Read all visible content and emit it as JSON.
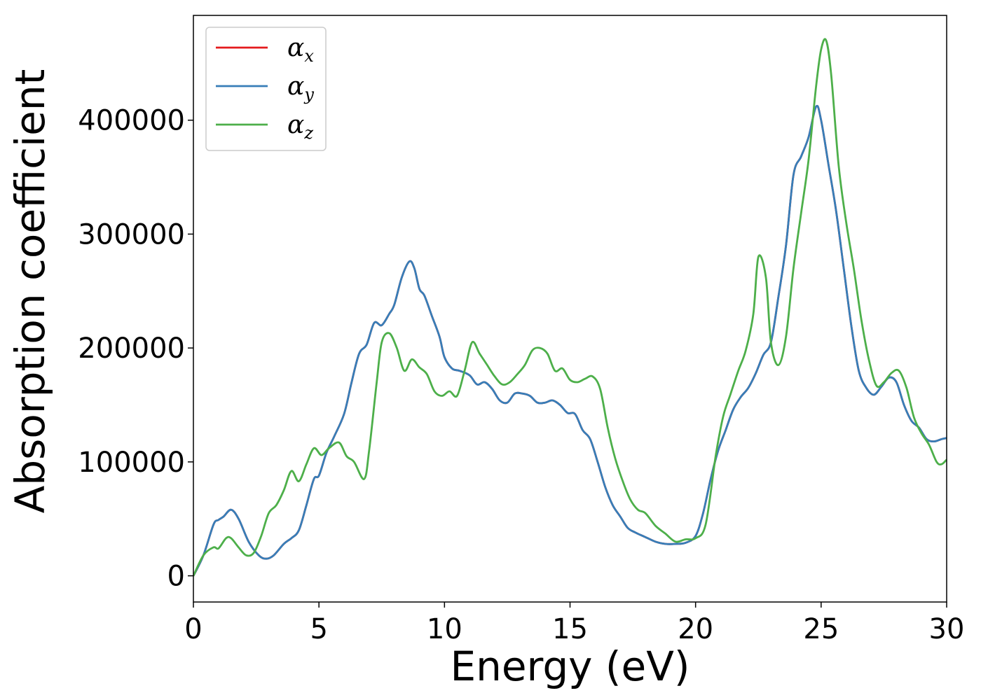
{
  "chart_data": {
    "type": "line",
    "xlabel": "Energy (eV)",
    "ylabel": "Absorption coefficient",
    "xlim": [
      0,
      30
    ],
    "ylim": [
      -23000,
      492000
    ],
    "xticks": [
      0,
      5,
      10,
      15,
      20,
      25,
      30
    ],
    "yticks": [
      0,
      100000,
      200000,
      300000,
      400000
    ],
    "xtick_labels": [
      "0",
      "5",
      "10",
      "15",
      "20",
      "25",
      "30"
    ],
    "ytick_labels": [
      "0",
      "100000",
      "200000",
      "300000",
      "400000"
    ],
    "grid": false,
    "legend_position": "top-left",
    "legend": [
      {
        "base": "α",
        "sub": "x",
        "color": "#e41a1c"
      },
      {
        "base": "α",
        "sub": "y",
        "color": "#377eb8"
      },
      {
        "base": "α",
        "sub": "z",
        "color": "#4daf4a"
      }
    ],
    "series": [
      {
        "color": "#e41a1c",
        "x": [
          0,
          0.4,
          0.8,
          1.0,
          1.2,
          1.5,
          1.8,
          2.2,
          2.6,
          2.9,
          3.2,
          3.6,
          3.9,
          4.2,
          4.5,
          4.8,
          5.0,
          5.3,
          5.6,
          6.0,
          6.3,
          6.6,
          6.9,
          7.2,
          7.5,
          7.8,
          8.0,
          8.3,
          8.6,
          8.8,
          9.0,
          9.2,
          9.5,
          9.8,
          10.0,
          10.3,
          10.6,
          11.0,
          11.3,
          11.6,
          11.9,
          12.2,
          12.5,
          12.8,
          13.1,
          13.4,
          13.7,
          14.0,
          14.3,
          14.6,
          14.9,
          15.2,
          15.5,
          15.8,
          16.1,
          16.4,
          16.7,
          17.0,
          17.3,
          17.6,
          18.0,
          18.4,
          18.8,
          19.2,
          19.6,
          20.0,
          20.3,
          20.6,
          20.9,
          21.2,
          21.5,
          21.8,
          22.1,
          22.4,
          22.7,
          23.0,
          23.3,
          23.6,
          23.9,
          24.2,
          24.5,
          24.8,
          25.0,
          25.3,
          25.6,
          25.9,
          26.2,
          26.5,
          26.8,
          27.1,
          27.4,
          27.7,
          28.0,
          28.3,
          28.6,
          28.9,
          29.2,
          29.5,
          29.8,
          30.0
        ],
        "y": [
          0,
          18000,
          45000,
          49000,
          52000,
          58000,
          50000,
          30000,
          18000,
          15000,
          18000,
          28000,
          33000,
          40000,
          62000,
          85000,
          88000,
          108000,
          122000,
          142000,
          170000,
          195000,
          203000,
          222000,
          220000,
          230000,
          238000,
          262000,
          276000,
          270000,
          252000,
          246000,
          228000,
          210000,
          192000,
          182000,
          180000,
          176000,
          168000,
          170000,
          164000,
          154000,
          152000,
          160000,
          160000,
          158000,
          152000,
          152000,
          154000,
          150000,
          143000,
          142000,
          128000,
          120000,
          100000,
          78000,
          62000,
          52000,
          42000,
          38000,
          34000,
          30000,
          28000,
          28000,
          29000,
          35000,
          55000,
          85000,
          110000,
          128000,
          146000,
          157000,
          165000,
          178000,
          194000,
          205000,
          245000,
          290000,
          352000,
          368000,
          385000,
          412000,
          400000,
          360000,
          320000,
          270000,
          220000,
          180000,
          165000,
          159000,
          166000,
          174000,
          170000,
          150000,
          136000,
          130000,
          120000,
          118000,
          120000,
          121000
        ]
      },
      {
        "color": "#377eb8",
        "x": [
          0,
          0.4,
          0.8,
          1.0,
          1.2,
          1.5,
          1.8,
          2.2,
          2.6,
          2.9,
          3.2,
          3.6,
          3.9,
          4.2,
          4.5,
          4.8,
          5.0,
          5.3,
          5.6,
          6.0,
          6.3,
          6.6,
          6.9,
          7.2,
          7.5,
          7.8,
          8.0,
          8.3,
          8.6,
          8.8,
          9.0,
          9.2,
          9.5,
          9.8,
          10.0,
          10.3,
          10.6,
          11.0,
          11.3,
          11.6,
          11.9,
          12.2,
          12.5,
          12.8,
          13.1,
          13.4,
          13.7,
          14.0,
          14.3,
          14.6,
          14.9,
          15.2,
          15.5,
          15.8,
          16.1,
          16.4,
          16.7,
          17.0,
          17.3,
          17.6,
          18.0,
          18.4,
          18.8,
          19.2,
          19.6,
          20.0,
          20.3,
          20.6,
          20.9,
          21.2,
          21.5,
          21.8,
          22.1,
          22.4,
          22.7,
          23.0,
          23.3,
          23.6,
          23.9,
          24.2,
          24.5,
          24.8,
          25.0,
          25.3,
          25.6,
          25.9,
          26.2,
          26.5,
          26.8,
          27.1,
          27.4,
          27.7,
          28.0,
          28.3,
          28.6,
          28.9,
          29.2,
          29.5,
          29.8,
          30.0
        ],
        "y": [
          0,
          18000,
          45000,
          49000,
          52000,
          58000,
          50000,
          30000,
          18000,
          15000,
          18000,
          28000,
          33000,
          40000,
          62000,
          85000,
          88000,
          108000,
          122000,
          142000,
          170000,
          195000,
          203000,
          222000,
          220000,
          230000,
          238000,
          262000,
          276000,
          270000,
          252000,
          246000,
          228000,
          210000,
          192000,
          182000,
          180000,
          176000,
          168000,
          170000,
          164000,
          154000,
          152000,
          160000,
          160000,
          158000,
          152000,
          152000,
          154000,
          150000,
          143000,
          142000,
          128000,
          120000,
          100000,
          78000,
          62000,
          52000,
          42000,
          38000,
          34000,
          30000,
          28000,
          28000,
          29000,
          35000,
          55000,
          85000,
          110000,
          128000,
          146000,
          157000,
          165000,
          178000,
          194000,
          205000,
          245000,
          290000,
          352000,
          368000,
          385000,
          412000,
          400000,
          360000,
          320000,
          270000,
          220000,
          180000,
          165000,
          159000,
          166000,
          174000,
          170000,
          150000,
          136000,
          130000,
          120000,
          118000,
          120000,
          121000
        ]
      },
      {
        "color": "#4daf4a",
        "x": [
          0,
          0.4,
          0.8,
          1.0,
          1.3,
          1.5,
          1.8,
          2.1,
          2.4,
          2.7,
          3.0,
          3.3,
          3.6,
          3.9,
          4.2,
          4.5,
          4.8,
          5.1,
          5.4,
          5.8,
          6.1,
          6.4,
          6.8,
          7.0,
          7.3,
          7.5,
          7.8,
          8.1,
          8.4,
          8.7,
          9.0,
          9.3,
          9.6,
          9.9,
          10.2,
          10.5,
          10.8,
          11.1,
          11.4,
          11.7,
          12.0,
          12.3,
          12.6,
          12.9,
          13.2,
          13.5,
          13.8,
          14.1,
          14.4,
          14.7,
          15.0,
          15.3,
          15.6,
          15.9,
          16.2,
          16.5,
          16.8,
          17.1,
          17.4,
          17.7,
          18.0,
          18.4,
          18.8,
          19.2,
          19.6,
          20.0,
          20.4,
          20.8,
          21.1,
          21.4,
          21.7,
          22.0,
          22.3,
          22.5,
          22.8,
          23.0,
          23.3,
          23.6,
          23.9,
          24.2,
          24.5,
          24.8,
          25.0,
          25.2,
          25.4,
          25.7,
          26.0,
          26.3,
          26.6,
          26.9,
          27.2,
          27.5,
          27.8,
          28.1,
          28.4,
          28.7,
          29.0,
          29.3,
          29.6,
          29.8,
          30.0
        ],
        "y": [
          0,
          18000,
          25000,
          24000,
          33000,
          33000,
          25000,
          18000,
          20000,
          35000,
          55000,
          62000,
          75000,
          92000,
          83000,
          98000,
          112000,
          106000,
          112000,
          117000,
          105000,
          100000,
          85000,
          110000,
          170000,
          205000,
          213000,
          200000,
          180000,
          190000,
          183000,
          177000,
          162000,
          158000,
          162000,
          158000,
          180000,
          205000,
          195000,
          185000,
          175000,
          168000,
          170000,
          177000,
          185000,
          198000,
          200000,
          195000,
          180000,
          182000,
          172000,
          170000,
          173000,
          175000,
          164000,
          130000,
          103000,
          83000,
          67000,
          58000,
          55000,
          44000,
          37000,
          30000,
          32000,
          33000,
          45000,
          105000,
          140000,
          160000,
          180000,
          198000,
          230000,
          280000,
          262000,
          205000,
          185000,
          210000,
          270000,
          318000,
          365000,
          430000,
          462000,
          470000,
          440000,
          360000,
          310000,
          270000,
          225000,
          190000,
          167000,
          170000,
          178000,
          180000,
          165000,
          139000,
          125000,
          115000,
          100000,
          98000,
          102000
        ]
      }
    ]
  }
}
